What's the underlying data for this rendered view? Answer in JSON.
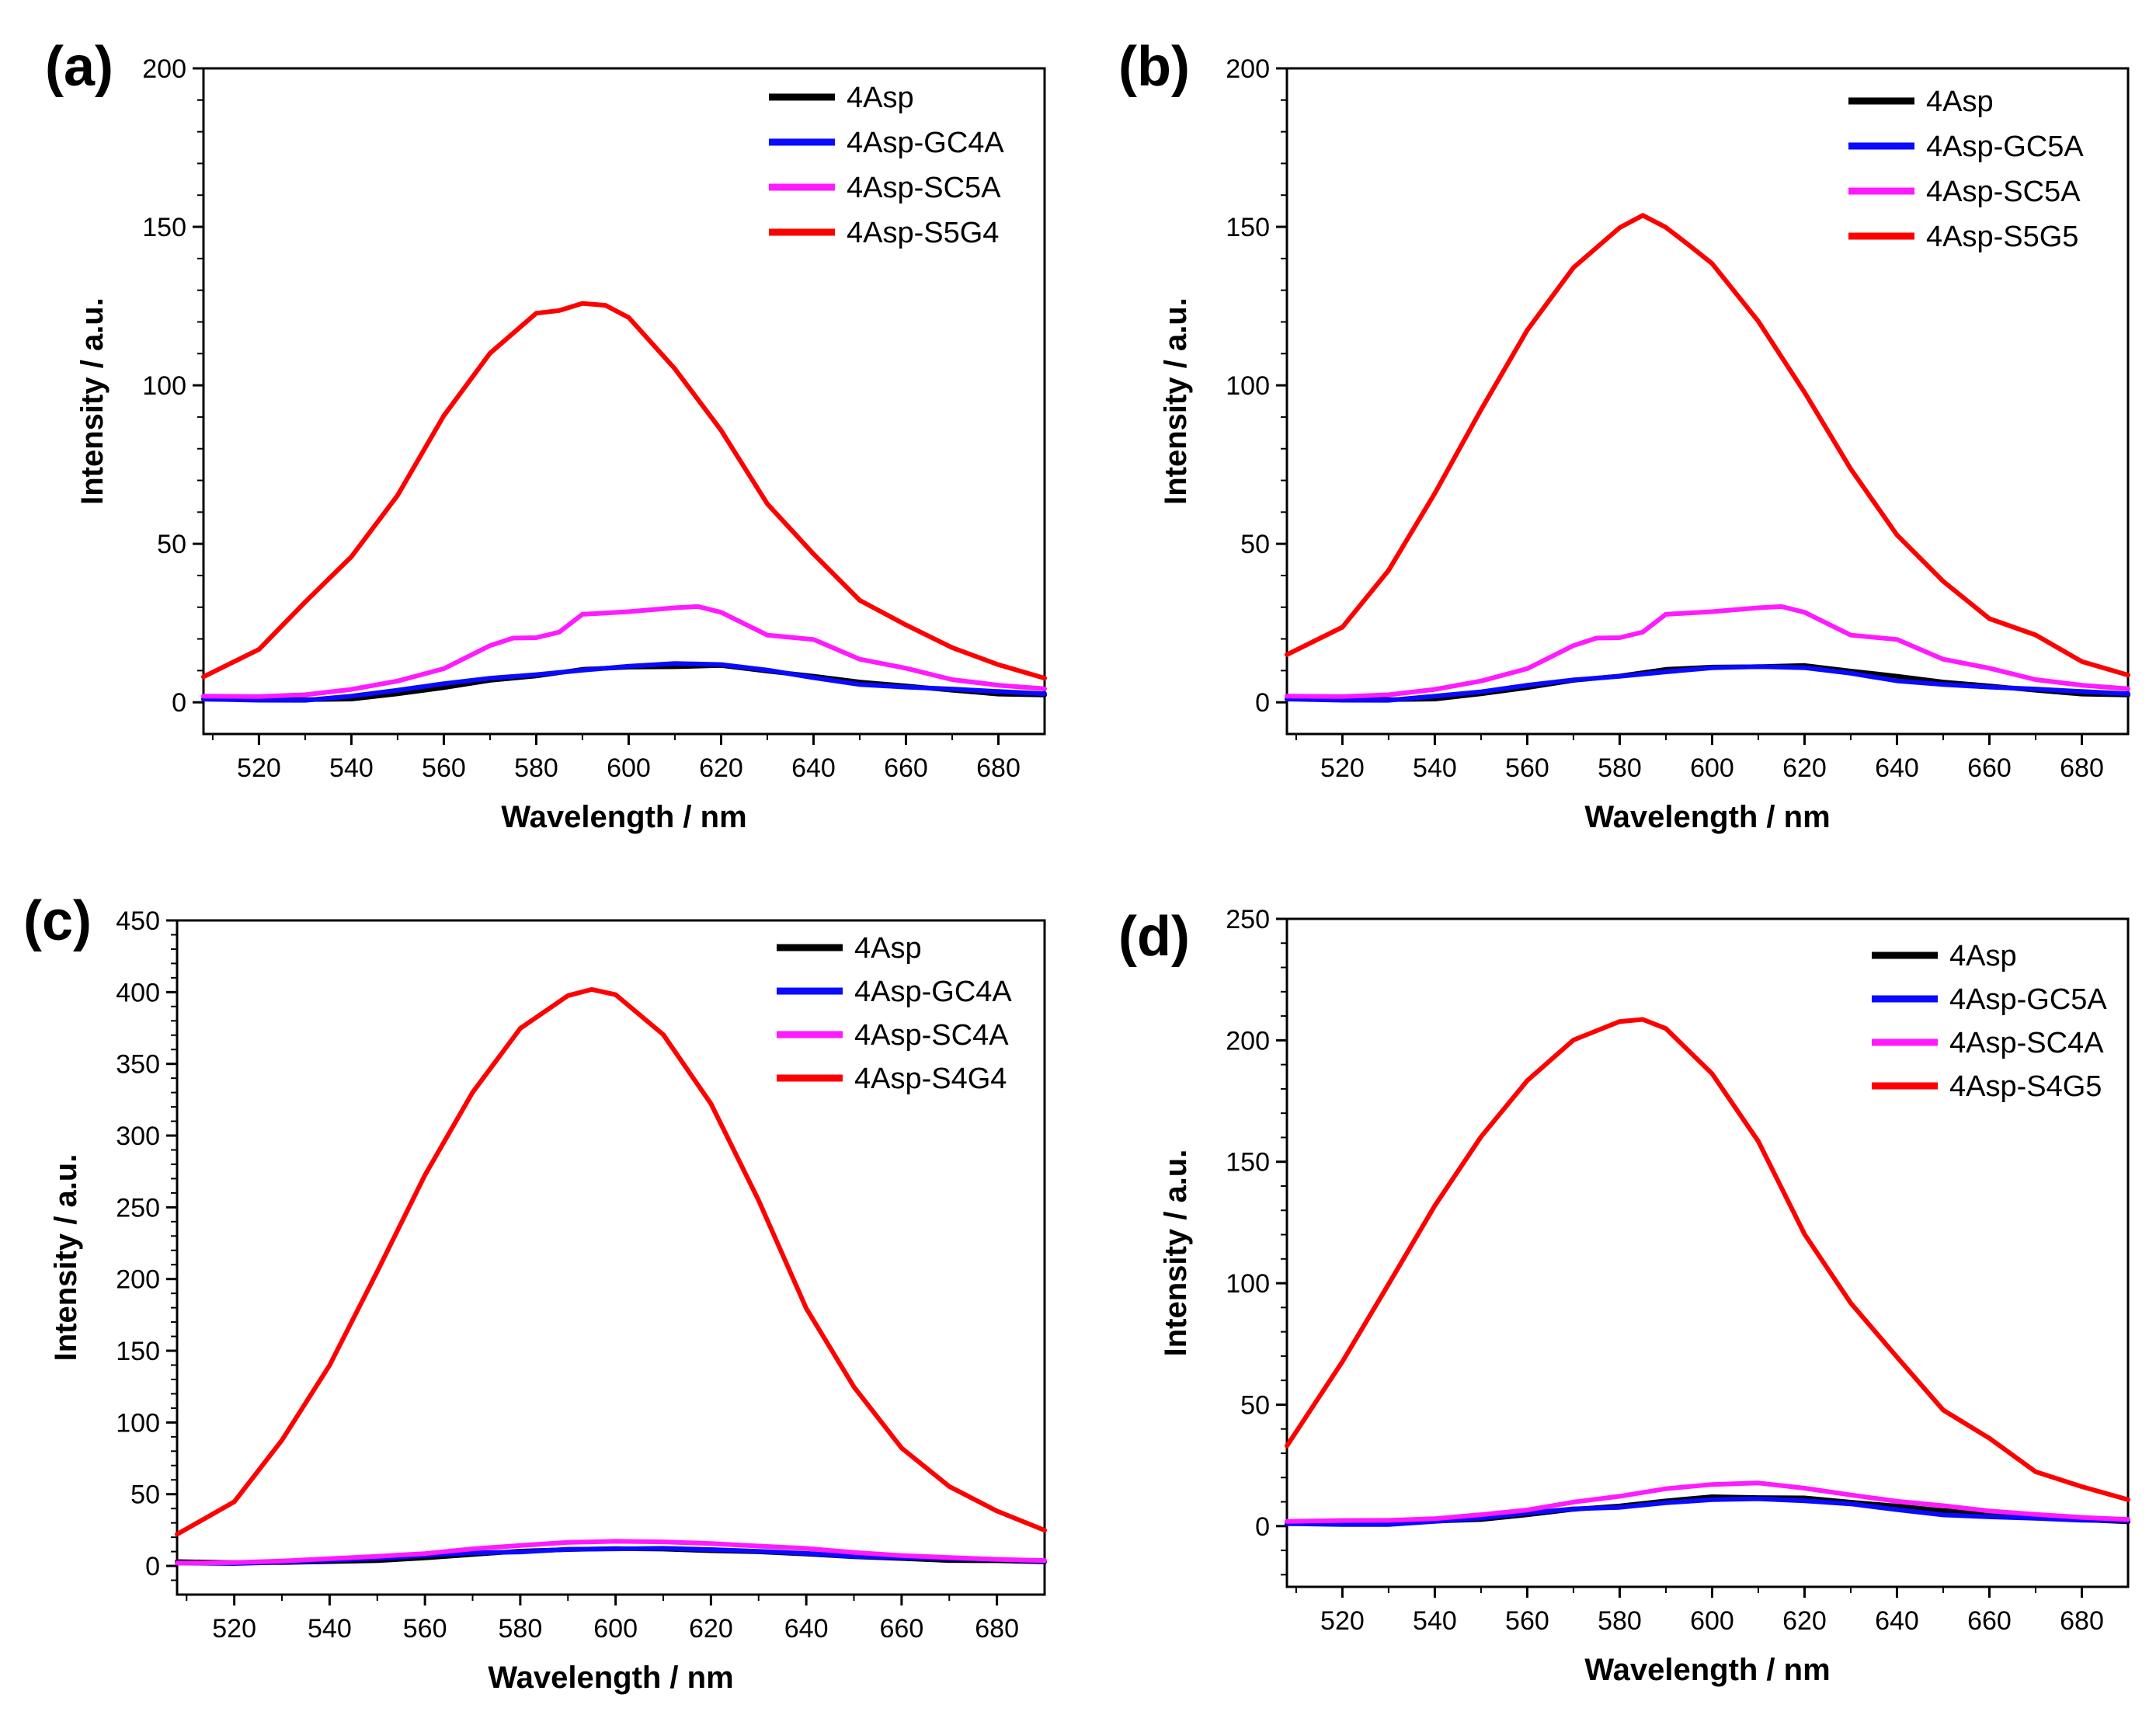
{
  "colors": {
    "black": "#000000",
    "blue": "#0a0aff",
    "magenta": "#ff1aff",
    "red": "#ff0000"
  },
  "chart_data": [
    {
      "panel": "(a)",
      "type": "line",
      "xlabel": "Wavelength / nm",
      "ylabel": "Intensity / a.u.",
      "xlim": [
        508,
        690
      ],
      "ylim": [
        -10,
        200
      ],
      "xticks": [
        520,
        540,
        560,
        580,
        600,
        620,
        640,
        660,
        680
      ],
      "yticks": [
        0,
        50,
        100,
        150,
        200
      ],
      "legend_position": "top-right",
      "series": [
        {
          "name": "4Asp",
          "color": "#000000",
          "x": [
            508,
            520,
            530,
            540,
            550,
            560,
            570,
            580,
            590,
            600,
            610,
            620,
            630,
            640,
            650,
            660,
            670,
            680,
            690
          ],
          "y": [
            1,
            0.5,
            0.5,
            1,
            3,
            5,
            7,
            8,
            10,
            11,
            11.5,
            12,
            10,
            8,
            6,
            5,
            4,
            3,
            2.5
          ]
        },
        {
          "name": "4Asp-GC4A",
          "color": "#0a0aff",
          "x": [
            508,
            520,
            530,
            540,
            550,
            560,
            570,
            580,
            590,
            600,
            610,
            620,
            630,
            640,
            650,
            660,
            670,
            680,
            690
          ],
          "y": [
            1,
            1,
            1,
            2,
            3.5,
            5.5,
            7.5,
            9,
            10.5,
            11.5,
            12,
            11.5,
            10,
            8,
            6,
            5,
            4,
            3,
            2.5
          ]
        },
        {
          "name": "4Asp-SC5A",
          "color": "#ff1aff",
          "x": [
            508,
            520,
            530,
            540,
            550,
            560,
            570,
            575,
            580,
            585,
            590,
            600,
            610,
            615,
            620,
            630,
            640,
            650,
            660,
            670,
            680,
            690
          ],
          "y": [
            2,
            1.5,
            2,
            4,
            7,
            11,
            18,
            20,
            20,
            22,
            28,
            29,
            30,
            30,
            28,
            21,
            20,
            14,
            11,
            7,
            5,
            4
          ]
        },
        {
          "name": "4Asp-S5G4",
          "color": "#ff0000",
          "x": [
            508,
            520,
            530,
            540,
            550,
            560,
            570,
            580,
            585,
            590,
            595,
            600,
            610,
            620,
            630,
            640,
            650,
            660,
            670,
            680,
            690
          ],
          "y": [
            8,
            17,
            32,
            46,
            65,
            90,
            110,
            123,
            124,
            126,
            125,
            121,
            105,
            86,
            63,
            47,
            32,
            24,
            17,
            12,
            8
          ]
        }
      ]
    },
    {
      "panel": "(b)",
      "type": "line",
      "xlabel": "Wavelength / nm",
      "ylabel": "Intensity / a.u.",
      "xlim": [
        508,
        690
      ],
      "ylim": [
        -10,
        200
      ],
      "xticks": [
        520,
        540,
        560,
        580,
        600,
        620,
        640,
        660,
        680
      ],
      "yticks": [
        0,
        50,
        100,
        150,
        200
      ],
      "legend_position": "top-right",
      "series": [
        {
          "name": "4Asp",
          "color": "#000000",
          "x": [
            508,
            520,
            530,
            540,
            550,
            560,
            570,
            580,
            590,
            600,
            610,
            620,
            630,
            640,
            650,
            660,
            670,
            680,
            690
          ],
          "y": [
            1,
            1,
            0.5,
            1,
            3,
            5,
            7,
            8,
            10,
            11,
            11.5,
            12,
            10,
            8,
            6,
            5,
            4,
            3,
            2.5
          ]
        },
        {
          "name": "4Asp-GC5A",
          "color": "#0a0aff",
          "x": [
            508,
            520,
            530,
            540,
            550,
            560,
            570,
            580,
            590,
            600,
            610,
            620,
            630,
            640,
            650,
            660,
            670,
            680,
            690
          ],
          "y": [
            1,
            1,
            1,
            2,
            3,
            5,
            7,
            8.5,
            10,
            11,
            11,
            10.5,
            9,
            7,
            6,
            5,
            4,
            3,
            2.5
          ]
        },
        {
          "name": "4Asp-SC5A",
          "color": "#ff1aff",
          "x": [
            508,
            520,
            530,
            540,
            550,
            560,
            570,
            575,
            580,
            585,
            590,
            600,
            610,
            615,
            620,
            630,
            640,
            650,
            660,
            670,
            680,
            690
          ],
          "y": [
            2,
            1.5,
            2,
            4,
            7,
            11,
            18,
            20,
            20,
            22,
            28,
            29,
            30,
            30,
            28,
            21,
            20,
            14,
            11,
            7,
            5,
            4
          ]
        },
        {
          "name": "4Asp-S5G5",
          "color": "#ff0000",
          "x": [
            508,
            520,
            530,
            540,
            550,
            560,
            570,
            580,
            585,
            590,
            595,
            600,
            610,
            620,
            630,
            640,
            650,
            660,
            670,
            680,
            690
          ],
          "y": [
            15,
            24,
            42,
            66,
            92,
            117,
            137,
            150,
            154,
            150,
            144,
            138,
            120,
            98,
            74,
            53,
            38,
            26,
            21,
            13,
            9
          ]
        }
      ]
    },
    {
      "panel": "(c)",
      "type": "line",
      "xlabel": "Wavelength / nm",
      "ylabel": "Intensity / a.u.",
      "xlim": [
        508,
        690
      ],
      "ylim": [
        -20,
        450
      ],
      "xticks": [
        520,
        540,
        560,
        580,
        600,
        620,
        640,
        660,
        680
      ],
      "yticks": [
        0,
        50,
        100,
        150,
        200,
        250,
        300,
        350,
        400,
        450
      ],
      "legend_position": "top-right",
      "series": [
        {
          "name": "4Asp",
          "color": "#000000",
          "x": [
            508,
            520,
            530,
            540,
            550,
            560,
            570,
            580,
            590,
            600,
            610,
            620,
            630,
            640,
            650,
            660,
            670,
            680,
            690
          ],
          "y": [
            3,
            2,
            2,
            3,
            4,
            6,
            8,
            10,
            11,
            12,
            12,
            11,
            10,
            8,
            6,
            5,
            4,
            4,
            3
          ]
        },
        {
          "name": "4Asp-GC4A",
          "color": "#0a0aff",
          "x": [
            508,
            520,
            530,
            540,
            550,
            560,
            570,
            580,
            590,
            600,
            610,
            620,
            630,
            640,
            650,
            660,
            670,
            680,
            690
          ],
          "y": [
            2,
            2,
            3,
            4,
            5,
            7,
            9,
            10,
            12,
            12,
            12,
            11,
            10,
            9,
            7,
            6,
            5,
            4,
            3
          ]
        },
        {
          "name": "4Asp-SC4A",
          "color": "#ff1aff",
          "x": [
            508,
            520,
            530,
            540,
            550,
            560,
            570,
            580,
            590,
            600,
            610,
            620,
            630,
            640,
            650,
            660,
            670,
            680,
            690
          ],
          "y": [
            2,
            2,
            3,
            5,
            7,
            9,
            12,
            14,
            16,
            17,
            17,
            16,
            14,
            12,
            9,
            7,
            6,
            5,
            4
          ]
        },
        {
          "name": "4Asp-S4G4",
          "color": "#ff0000",
          "x": [
            508,
            520,
            530,
            540,
            550,
            560,
            570,
            580,
            590,
            595,
            600,
            610,
            620,
            630,
            640,
            650,
            660,
            670,
            680,
            690
          ],
          "y": [
            22,
            45,
            88,
            140,
            205,
            272,
            330,
            375,
            398,
            402,
            398,
            370,
            322,
            255,
            180,
            125,
            82,
            55,
            38,
            25
          ]
        }
      ]
    },
    {
      "panel": "(d)",
      "type": "line",
      "xlabel": "Wavelength / nm",
      "ylabel": "Intensity / a.u.",
      "xlim": [
        508,
        690
      ],
      "ylim": [
        -25,
        250
      ],
      "xticks": [
        520,
        540,
        560,
        580,
        600,
        620,
        640,
        660,
        680
      ],
      "yticks": [
        0,
        50,
        100,
        150,
        200,
        250
      ],
      "legend_position": "top-right",
      "series": [
        {
          "name": "4Asp",
          "color": "#000000",
          "x": [
            508,
            520,
            530,
            540,
            550,
            560,
            570,
            580,
            590,
            600,
            610,
            620,
            630,
            640,
            650,
            660,
            670,
            680,
            690
          ],
          "y": [
            1,
            1,
            1,
            2,
            3,
            5,
            7,
            8,
            10,
            12,
            12,
            12,
            10,
            8,
            6,
            5,
            4,
            3,
            2
          ]
        },
        {
          "name": "4Asp-GC5A",
          "color": "#0a0aff",
          "x": [
            508,
            520,
            530,
            540,
            550,
            560,
            570,
            580,
            590,
            600,
            610,
            620,
            630,
            640,
            650,
            660,
            670,
            680,
            690
          ],
          "y": [
            1,
            1,
            1,
            2,
            3,
            5,
            7,
            8,
            10,
            11,
            11,
            10,
            9,
            7,
            5,
            4,
            3,
            2,
            2
          ]
        },
        {
          "name": "4Asp-SC4A",
          "color": "#ff1aff",
          "x": [
            508,
            520,
            530,
            540,
            550,
            560,
            570,
            580,
            590,
            600,
            610,
            620,
            630,
            640,
            650,
            660,
            670,
            680,
            690
          ],
          "y": [
            2,
            2,
            2,
            3,
            5,
            7,
            10,
            12,
            15,
            17,
            18,
            16,
            13,
            10,
            8,
            6,
            5,
            4,
            3
          ]
        },
        {
          "name": "4Asp-S4G5",
          "color": "#ff0000",
          "x": [
            508,
            520,
            530,
            540,
            550,
            560,
            570,
            580,
            585,
            590,
            600,
            610,
            620,
            630,
            640,
            650,
            660,
            670,
            680,
            690
          ],
          "y": [
            33,
            68,
            100,
            132,
            160,
            183,
            200,
            208,
            209,
            205,
            186,
            158,
            120,
            92,
            70,
            48,
            36,
            22,
            16,
            11
          ]
        }
      ]
    }
  ]
}
